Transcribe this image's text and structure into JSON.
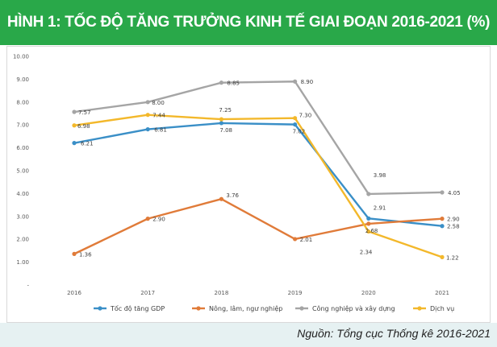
{
  "header": {
    "title": "HÌNH 1: TỐC ĐỘ TĂNG TRƯỞNG KINH TẾ GIAI ĐOẠN 2016-2021 (%)"
  },
  "footer": {
    "source": "Nguồn: Tổng cục Thống kê 2016-2021"
  },
  "colors": {
    "banner": "#29a849",
    "footer_band": "#e6f1f2"
  },
  "chart_data": {
    "type": "line",
    "categories": [
      "2016",
      "2017",
      "2018",
      "2019",
      "2020",
      "2021"
    ],
    "ylim": [
      0,
      10
    ],
    "yticks": [
      "10.00",
      "9.00",
      "8.00",
      "7.00",
      "6.00",
      "5.00",
      "4.00",
      "3.00",
      "2.00",
      "1.00",
      "-"
    ],
    "grid": false,
    "legend_position": "bottom",
    "series": [
      {
        "name": "Tốc độ tăng GDP",
        "color": "#3a8fc7",
        "values": [
          6.21,
          6.81,
          7.08,
          7.02,
          2.91,
          2.58
        ],
        "labels": [
          "6.21",
          "6.81",
          "7.08",
          "7.02",
          "2.91",
          "2.58"
        ]
      },
      {
        "name": "Nông, lâm, ngư nghiệp",
        "color": "#e07b39",
        "values": [
          1.36,
          2.9,
          3.76,
          2.01,
          2.68,
          2.9
        ],
        "labels": [
          "1.36",
          "2.90",
          "3.76",
          "2.01",
          "2.68",
          "2.90"
        ]
      },
      {
        "name": "Công nghiệp và xây dựng",
        "color": "#a5a5a5",
        "values": [
          7.57,
          8.0,
          8.85,
          8.9,
          3.98,
          4.05
        ],
        "labels": [
          "7.57",
          "8.00",
          "8.85",
          "8.90",
          "3.98",
          "4.05"
        ]
      },
      {
        "name": "Dịch vụ",
        "color": "#f3b82b",
        "values": [
          6.98,
          7.44,
          7.25,
          7.3,
          2.34,
          1.22
        ],
        "labels": [
          "6.98",
          "7.44",
          "7.25",
          "7.30",
          "2.34",
          "1.22"
        ]
      }
    ]
  }
}
